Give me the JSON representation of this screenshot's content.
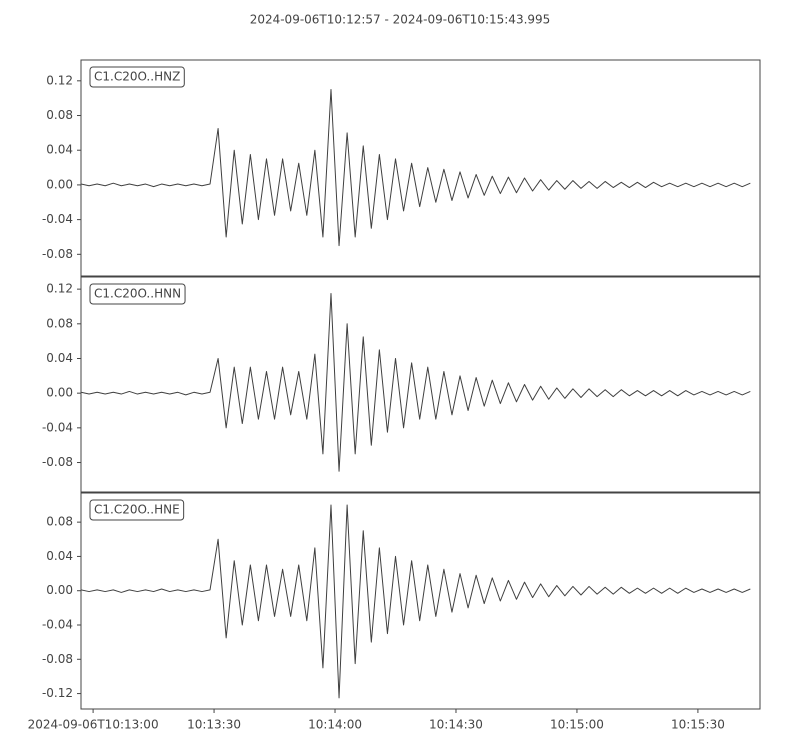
{
  "title": "2024-09-06T10:12:57  -  2024-09-06T10:15:43.995",
  "chart_data": [
    {
      "type": "line",
      "label": "C1.C20O..HNZ",
      "color": "#404040",
      "x": [
        0,
        2,
        4,
        6,
        8,
        10,
        12,
        14,
        16,
        18,
        20,
        22,
        24,
        26,
        28,
        30,
        32,
        34,
        36,
        38,
        40,
        42,
        44,
        46,
        48,
        50,
        52,
        54,
        56,
        58,
        60,
        62,
        64,
        66,
        68,
        70,
        72,
        74,
        76,
        78,
        80,
        82,
        84,
        86,
        88,
        90,
        92,
        94,
        96,
        98,
        100,
        102,
        104,
        106,
        108,
        110,
        112,
        114,
        116,
        118,
        120,
        122,
        124,
        126,
        128,
        130,
        132,
        134,
        136,
        138,
        140,
        142,
        144,
        146,
        148,
        150,
        152,
        154,
        156,
        158,
        160,
        162,
        164,
        166
      ],
      "values": [
        0.001,
        -0.001,
        0.001,
        -0.001,
        0.002,
        -0.001,
        0.001,
        -0.001,
        0.001,
        -0.002,
        0.001,
        -0.001,
        0.001,
        -0.001,
        0.001,
        -0.001,
        0.001,
        0.065,
        -0.06,
        0.04,
        -0.045,
        0.035,
        -0.04,
        0.03,
        -0.035,
        0.03,
        -0.03,
        0.025,
        -0.035,
        0.04,
        -0.06,
        0.11,
        -0.07,
        0.06,
        -0.06,
        0.045,
        -0.05,
        0.035,
        -0.04,
        0.03,
        -0.03,
        0.025,
        -0.025,
        0.02,
        -0.02,
        0.018,
        -0.018,
        0.015,
        -0.015,
        0.012,
        -0.012,
        0.01,
        -0.01,
        0.009,
        -0.009,
        0.008,
        -0.007,
        0.006,
        -0.006,
        0.005,
        -0.005,
        0.005,
        -0.004,
        0.004,
        -0.004,
        0.004,
        -0.003,
        0.003,
        -0.003,
        0.003,
        -0.003,
        0.003,
        -0.002,
        0.002,
        -0.002,
        0.002,
        -0.002,
        0.002,
        -0.002,
        0.002,
        -0.002,
        0.002,
        -0.002,
        0.002
      ],
      "xlim": [
        0,
        168.4
      ],
      "ylim": [
        -0.105,
        0.144
      ],
      "yticks": [
        -0.08,
        -0.04,
        {
          "value": 0,
          "label": "0.00"
        },
        0.04,
        0.08,
        0.12
      ]
    },
    {
      "type": "line",
      "label": "C1.C20O..HNN",
      "color": "#404040",
      "x": [
        0,
        2,
        4,
        6,
        8,
        10,
        12,
        14,
        16,
        18,
        20,
        22,
        24,
        26,
        28,
        30,
        32,
        34,
        36,
        38,
        40,
        42,
        44,
        46,
        48,
        50,
        52,
        54,
        56,
        58,
        60,
        62,
        64,
        66,
        68,
        70,
        72,
        74,
        76,
        78,
        80,
        82,
        84,
        86,
        88,
        90,
        92,
        94,
        96,
        98,
        100,
        102,
        104,
        106,
        108,
        110,
        112,
        114,
        116,
        118,
        120,
        122,
        124,
        126,
        128,
        130,
        132,
        134,
        136,
        138,
        140,
        142,
        144,
        146,
        148,
        150,
        152,
        154,
        156,
        158,
        160,
        162,
        164,
        166
      ],
      "values": [
        0.001,
        -0.001,
        0.001,
        -0.001,
        0.001,
        -0.001,
        0.002,
        -0.001,
        0.001,
        -0.001,
        0.001,
        -0.001,
        0.001,
        -0.002,
        0.001,
        -0.001,
        0.001,
        0.04,
        -0.04,
        0.03,
        -0.035,
        0.03,
        -0.03,
        0.025,
        -0.03,
        0.03,
        -0.025,
        0.025,
        -0.03,
        0.045,
        -0.07,
        0.115,
        -0.09,
        0.08,
        -0.07,
        0.065,
        -0.06,
        0.05,
        -0.045,
        0.04,
        -0.04,
        0.035,
        -0.03,
        0.03,
        -0.03,
        0.025,
        -0.025,
        0.02,
        -0.02,
        0.018,
        -0.015,
        0.015,
        -0.012,
        0.012,
        -0.01,
        0.01,
        -0.008,
        0.008,
        -0.007,
        0.006,
        -0.006,
        0.005,
        -0.005,
        0.005,
        -0.004,
        0.004,
        -0.004,
        0.004,
        -0.003,
        0.003,
        -0.003,
        0.003,
        -0.003,
        0.003,
        -0.003,
        0.003,
        -0.002,
        0.002,
        -0.002,
        0.002,
        -0.002,
        0.002,
        -0.002,
        0.002
      ],
      "xlim": [
        0,
        168.4
      ],
      "ylim": [
        -0.114,
        0.134
      ],
      "yticks": [
        -0.08,
        -0.04,
        {
          "value": 0,
          "label": "0.00"
        },
        0.04,
        0.08,
        0.12
      ]
    },
    {
      "type": "line",
      "label": "C1.C20O..HNE",
      "color": "#404040",
      "x": [
        0,
        2,
        4,
        6,
        8,
        10,
        12,
        14,
        16,
        18,
        20,
        22,
        24,
        26,
        28,
        30,
        32,
        34,
        36,
        38,
        40,
        42,
        44,
        46,
        48,
        50,
        52,
        54,
        56,
        58,
        60,
        62,
        64,
        66,
        68,
        70,
        72,
        74,
        76,
        78,
        80,
        82,
        84,
        86,
        88,
        90,
        92,
        94,
        96,
        98,
        100,
        102,
        104,
        106,
        108,
        110,
        112,
        114,
        116,
        118,
        120,
        122,
        124,
        126,
        128,
        130,
        132,
        134,
        136,
        138,
        140,
        142,
        144,
        146,
        148,
        150,
        152,
        154,
        156,
        158,
        160,
        162,
        164,
        166
      ],
      "values": [
        0.001,
        -0.001,
        0.001,
        -0.001,
        0.001,
        -0.002,
        0.001,
        -0.001,
        0.001,
        -0.001,
        0.002,
        -0.001,
        0.001,
        -0.001,
        0.001,
        -0.001,
        0.001,
        0.06,
        -0.055,
        0.035,
        -0.04,
        0.03,
        -0.035,
        0.03,
        -0.03,
        0.025,
        -0.03,
        0.03,
        -0.035,
        0.05,
        -0.09,
        0.1,
        -0.125,
        0.1,
        -0.085,
        0.07,
        -0.06,
        0.05,
        -0.05,
        0.04,
        -0.04,
        0.035,
        -0.035,
        0.03,
        -0.03,
        0.025,
        -0.025,
        0.02,
        -0.02,
        0.018,
        -0.015,
        0.015,
        -0.012,
        0.012,
        -0.01,
        0.01,
        -0.008,
        0.008,
        -0.007,
        0.006,
        -0.006,
        0.005,
        -0.005,
        0.005,
        -0.004,
        0.004,
        -0.004,
        0.004,
        -0.003,
        0.003,
        -0.003,
        0.003,
        -0.003,
        0.003,
        -0.003,
        0.003,
        -0.002,
        0.002,
        -0.002,
        0.002,
        -0.002,
        0.002,
        -0.002,
        0.002
      ],
      "xlim": [
        0,
        168.4
      ],
      "ylim": [
        -0.138,
        0.114
      ],
      "yticks": [
        -0.12,
        -0.08,
        -0.04,
        {
          "value": 0,
          "label": "0.00"
        },
        0.04,
        0.08
      ],
      "xticks": [
        {
          "value": 3,
          "label": "2024-09-06T10:13:00"
        },
        {
          "value": 33,
          "label": "10:13:30"
        },
        {
          "value": 63,
          "label": "10:14:00"
        },
        {
          "value": 93,
          "label": "10:14:30"
        },
        {
          "value": 123,
          "label": "10:15:00"
        },
        {
          "value": 153,
          "label": "10:15:30"
        }
      ]
    }
  ]
}
